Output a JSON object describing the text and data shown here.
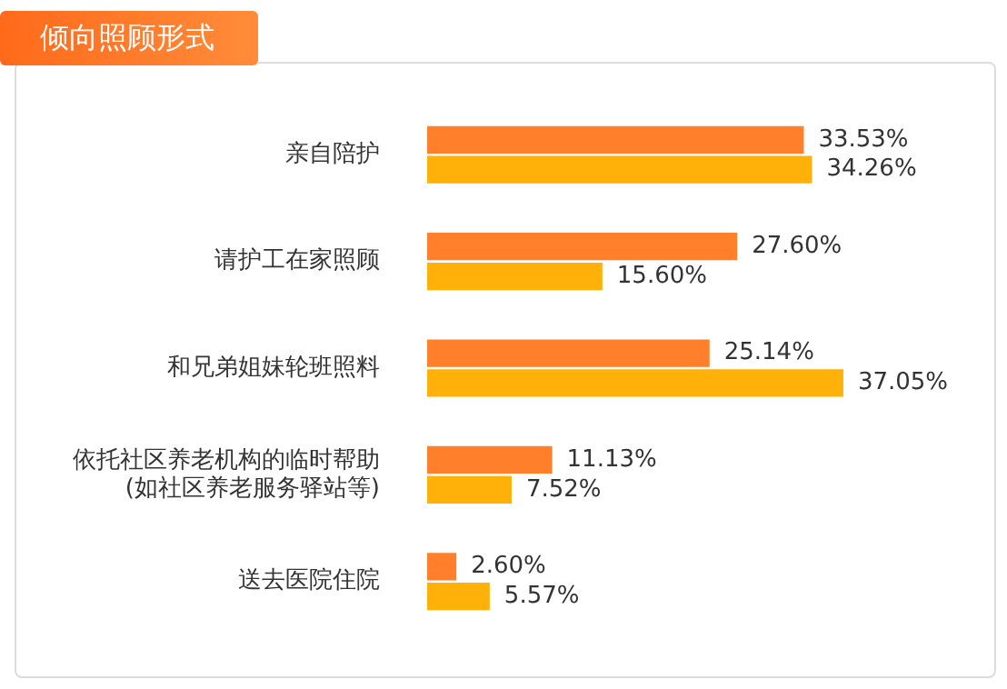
{
  "chart_data": {
    "type": "bar",
    "orientation": "horizontal",
    "title": "倾向照顾形式",
    "categories": [
      "亲自陪护",
      "请护工在家照顾",
      "和兄弟姐妹轮班照料",
      "依托社区养老机构的临时帮助\n(如社区养老服务驿站等)",
      "送去医院住院"
    ],
    "series": [
      {
        "color": "#ff7f2a",
        "values": [
          33.53,
          27.6,
          25.14,
          11.13,
          2.6
        ],
        "value_labels": [
          "33.53%",
          "27.60%",
          "25.14%",
          "11.13%",
          "2.60%"
        ]
      },
      {
        "color": "#ffb10a",
        "values": [
          34.26,
          15.6,
          37.05,
          7.52,
          5.57
        ],
        "value_labels": [
          "34.26%",
          "15.60%",
          "37.05%",
          "7.52%",
          "5.57%"
        ]
      }
    ],
    "legend": false,
    "tick_labels": "y"
  }
}
